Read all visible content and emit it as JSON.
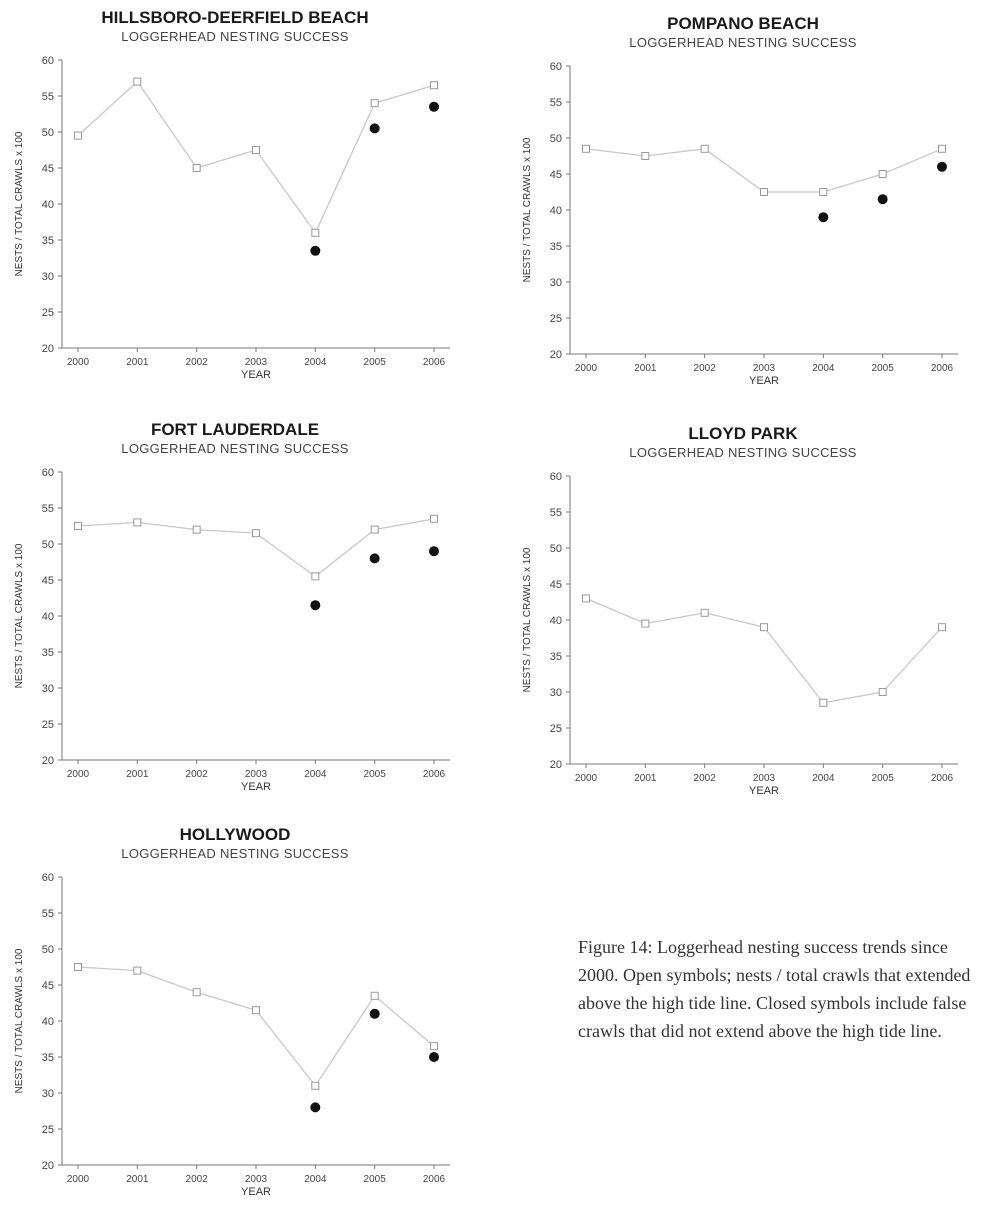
{
  "chart_data": [
    {
      "type": "scatter",
      "title": "HILLSBORO-DEERFIELD  BEACH",
      "subtitle": "LOGGERHEAD  NESTING SUCCESS",
      "xlabel": "YEAR",
      "ylabel": "NESTS / TOTAL CRAWLS x 100",
      "ylim": [
        20,
        60
      ],
      "yticks": [
        20,
        25,
        30,
        35,
        40,
        45,
        50,
        55,
        60
      ],
      "categories": [
        "2000",
        "2001",
        "2002",
        "2003",
        "2004",
        "2005",
        "2006"
      ],
      "series": [
        {
          "marker": "open",
          "connected": true,
          "values": [
            49.5,
            57,
            45,
            47.5,
            36,
            54,
            56.5
          ]
        },
        {
          "marker": "closed",
          "connected": false,
          "values": [
            null,
            null,
            null,
            null,
            33.5,
            50.5,
            53.5
          ]
        }
      ]
    },
    {
      "type": "scatter",
      "title": "POMPANO   BEACH",
      "subtitle": "LOGGERHEAD  NESTING SUCCESS",
      "xlabel": "YEAR",
      "ylabel": "NESTS / TOTAL CRAWLS x 100",
      "ylim": [
        20,
        60
      ],
      "yticks": [
        20,
        25,
        30,
        35,
        40,
        45,
        50,
        55,
        60
      ],
      "categories": [
        "2000",
        "2001",
        "2002",
        "2003",
        "2004",
        "2005",
        "2006"
      ],
      "series": [
        {
          "marker": "open",
          "connected": true,
          "values": [
            48.5,
            47.5,
            48.5,
            42.5,
            42.5,
            45,
            48.5
          ]
        },
        {
          "marker": "closed",
          "connected": false,
          "values": [
            null,
            null,
            null,
            null,
            39,
            41.5,
            46
          ]
        }
      ]
    },
    {
      "type": "scatter",
      "title": "FORT LAUDERDALE",
      "subtitle": "LOGGERHEAD  NESTING SUCCESS",
      "xlabel": "YEAR",
      "ylabel": "NESTS / TOTAL CRAWLS x 100",
      "ylim": [
        20,
        60
      ],
      "yticks": [
        20,
        25,
        30,
        35,
        40,
        45,
        50,
        55,
        60
      ],
      "categories": [
        "2000",
        "2001",
        "2002",
        "2003",
        "2004",
        "2005",
        "2006"
      ],
      "series": [
        {
          "marker": "open",
          "connected": true,
          "values": [
            52.5,
            53,
            52,
            51.5,
            45.5,
            52,
            53.5
          ]
        },
        {
          "marker": "closed",
          "connected": false,
          "values": [
            null,
            null,
            null,
            null,
            41.5,
            48,
            49
          ]
        }
      ]
    },
    {
      "type": "scatter",
      "title": "LLOYD PARK",
      "subtitle": "LOGGERHEAD  NESTING SUCCESS",
      "xlabel": "YEAR",
      "ylabel": "NESTS / TOTAL CRAWLS x 100",
      "ylim": [
        20,
        60
      ],
      "yticks": [
        20,
        25,
        30,
        35,
        40,
        45,
        50,
        55,
        60
      ],
      "categories": [
        "2000",
        "2001",
        "2002",
        "2003",
        "2004",
        "2005",
        "2006"
      ],
      "series": [
        {
          "marker": "open",
          "connected": true,
          "values": [
            43,
            39.5,
            41,
            39,
            28.5,
            30,
            39
          ]
        }
      ]
    },
    {
      "type": "scatter",
      "title": "HOLLYWOOD",
      "subtitle": "LOGGERHEAD  NESTING SUCCESS",
      "xlabel": "YEAR",
      "ylabel": "NESTS / TOTAL CRAWLS x 100",
      "ylim": [
        20,
        60
      ],
      "yticks": [
        20,
        25,
        30,
        35,
        40,
        45,
        50,
        55,
        60
      ],
      "categories": [
        "2000",
        "2001",
        "2002",
        "2003",
        "2004",
        "2005",
        "2006"
      ],
      "series": [
        {
          "marker": "open",
          "connected": true,
          "values": [
            47.5,
            47,
            44,
            41.5,
            31,
            43.5,
            36.5
          ]
        },
        {
          "marker": "closed",
          "connected": false,
          "values": [
            null,
            null,
            null,
            null,
            28,
            41,
            35
          ]
        }
      ]
    }
  ],
  "caption": {
    "text": "Figure 14: Loggerhead nesting success trends since 2000. Open symbols; nests / total crawls that extended above the high tide line. Closed symbols include false crawls that did not extend above the high tide line."
  },
  "colors": {
    "open_marker": "#999999",
    "closed_marker": "#111111",
    "line": "#c8c8c8",
    "axis": "#777777"
  }
}
